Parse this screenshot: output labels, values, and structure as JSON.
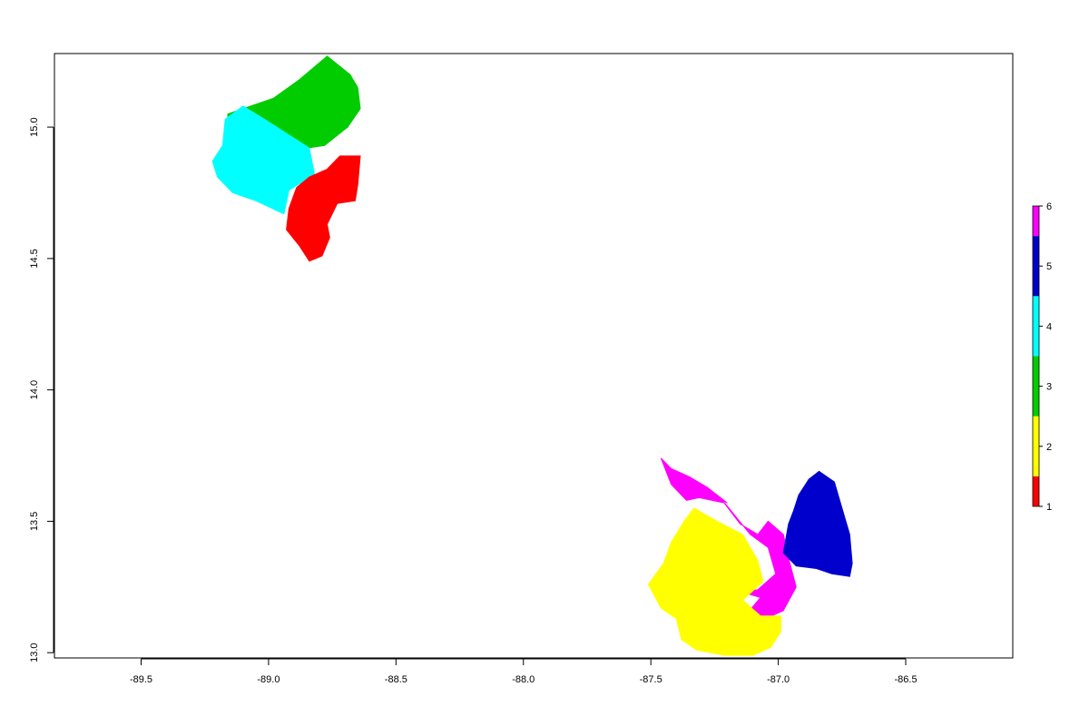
{
  "chart_data": {
    "type": "heatmap",
    "title": "",
    "xlabel": "",
    "ylabel": "",
    "xlim": [
      -89.84,
      -86.08
    ],
    "ylim": [
      12.98,
      15.28
    ],
    "x_ticks": [
      -89.5,
      -89.0,
      -88.5,
      -88.0,
      -87.5,
      -87.0,
      -86.5
    ],
    "x_tick_labels": [
      "-89.5",
      "-89.0",
      "-88.5",
      "-88.0",
      "-87.5",
      "-87.0",
      "-86.5"
    ],
    "y_ticks": [
      13.0,
      13.5,
      14.0,
      14.5,
      15.0
    ],
    "y_tick_labels": [
      "13.0",
      "13.5",
      "14.0",
      "14.5",
      "15.0"
    ],
    "grid": false,
    "legend": {
      "position": "right",
      "type": "color-bar",
      "values": [
        1,
        2,
        3,
        4,
        5,
        6
      ],
      "labels": [
        "1",
        "2",
        "3",
        "4",
        "5",
        "6"
      ],
      "colors": [
        "#FF0000",
        "#FFFF00",
        "#00CC00",
        "#00FFFF",
        "#0000CC",
        "#FF00FF"
      ]
    },
    "regions": [
      {
        "class": 3,
        "color": "#00CC00",
        "polygon": [
          [
            -88.77,
            15.27
          ],
          [
            -88.68,
            15.2
          ],
          [
            -88.65,
            15.15
          ],
          [
            -88.64,
            15.07
          ],
          [
            -88.69,
            15.0
          ],
          [
            -88.78,
            14.93
          ],
          [
            -88.92,
            14.91
          ],
          [
            -89.06,
            14.93
          ],
          [
            -89.16,
            14.97
          ],
          [
            -89.16,
            15.05
          ],
          [
            -88.98,
            15.11
          ],
          [
            -88.88,
            15.18
          ]
        ]
      },
      {
        "class": 4,
        "color": "#00FFFF",
        "polygon": [
          [
            -89.1,
            15.08
          ],
          [
            -89.0,
            15.02
          ],
          [
            -88.92,
            14.97
          ],
          [
            -88.84,
            14.92
          ],
          [
            -88.82,
            14.82
          ],
          [
            -88.92,
            14.76
          ],
          [
            -88.94,
            14.67
          ],
          [
            -89.05,
            14.72
          ],
          [
            -89.14,
            14.75
          ],
          [
            -89.2,
            14.81
          ],
          [
            -89.22,
            14.87
          ],
          [
            -89.18,
            14.93
          ],
          [
            -89.17,
            15.03
          ]
        ]
      },
      {
        "class": 1,
        "color": "#FF0000",
        "polygon": [
          [
            -88.64,
            14.89
          ],
          [
            -88.65,
            14.78
          ],
          [
            -88.66,
            14.72
          ],
          [
            -88.73,
            14.71
          ],
          [
            -88.77,
            14.63
          ],
          [
            -88.76,
            14.58
          ],
          [
            -88.79,
            14.51
          ],
          [
            -88.84,
            14.49
          ],
          [
            -88.88,
            14.55
          ],
          [
            -88.93,
            14.61
          ],
          [
            -88.92,
            14.69
          ],
          [
            -88.89,
            14.77
          ],
          [
            -88.84,
            14.81
          ],
          [
            -88.77,
            14.84
          ],
          [
            -88.72,
            14.89
          ]
        ]
      },
      {
        "class": 6,
        "color": "#FF00FF",
        "polygon": [
          [
            -87.46,
            13.74
          ],
          [
            -87.42,
            13.64
          ],
          [
            -87.36,
            13.58
          ],
          [
            -87.31,
            13.59
          ],
          [
            -87.21,
            13.57
          ],
          [
            -87.11,
            13.45
          ],
          [
            -87.04,
            13.4
          ],
          [
            -87.01,
            13.3
          ],
          [
            -87.08,
            13.24
          ],
          [
            -87.14,
            13.23
          ],
          [
            -87.07,
            13.21
          ],
          [
            -87.13,
            13.14
          ],
          [
            -87.1,
            13.12
          ],
          [
            -87.05,
            13.13
          ],
          [
            -86.98,
            13.16
          ],
          [
            -86.93,
            13.25
          ],
          [
            -86.96,
            13.36
          ],
          [
            -86.98,
            13.45
          ],
          [
            -87.04,
            13.5
          ],
          [
            -87.08,
            13.45
          ],
          [
            -87.15,
            13.49
          ],
          [
            -87.22,
            13.58
          ],
          [
            -87.2,
            13.57
          ],
          [
            -87.28,
            13.63
          ],
          [
            -87.35,
            13.67
          ],
          [
            -87.42,
            13.7
          ]
        ]
      },
      {
        "class": 5,
        "color": "#0000CC",
        "polygon": [
          [
            -86.84,
            13.69
          ],
          [
            -86.78,
            13.65
          ],
          [
            -86.75,
            13.55
          ],
          [
            -86.72,
            13.45
          ],
          [
            -86.71,
            13.34
          ],
          [
            -86.72,
            13.29
          ],
          [
            -86.79,
            13.3
          ],
          [
            -86.85,
            13.32
          ],
          [
            -86.93,
            13.33
          ],
          [
            -86.98,
            13.38
          ],
          [
            -86.96,
            13.49
          ],
          [
            -86.94,
            13.54
          ],
          [
            -86.92,
            13.6
          ],
          [
            -86.88,
            13.66
          ]
        ]
      },
      {
        "class": 2,
        "color": "#FFFF00",
        "polygon": [
          [
            -87.33,
            13.55
          ],
          [
            -87.24,
            13.5
          ],
          [
            -87.14,
            13.45
          ],
          [
            -87.08,
            13.35
          ],
          [
            -87.06,
            13.27
          ],
          [
            -87.14,
            13.2
          ],
          [
            -87.07,
            13.14
          ],
          [
            -86.99,
            13.14
          ],
          [
            -86.99,
            13.08
          ],
          [
            -87.03,
            13.02
          ],
          [
            -87.1,
            12.99
          ],
          [
            -87.21,
            12.99
          ],
          [
            -87.32,
            13.01
          ],
          [
            -87.38,
            13.05
          ],
          [
            -87.4,
            13.13
          ],
          [
            -87.46,
            13.17
          ],
          [
            -87.51,
            13.26
          ],
          [
            -87.45,
            13.34
          ],
          [
            -87.42,
            13.42
          ],
          [
            -87.37,
            13.5
          ]
        ]
      }
    ]
  }
}
